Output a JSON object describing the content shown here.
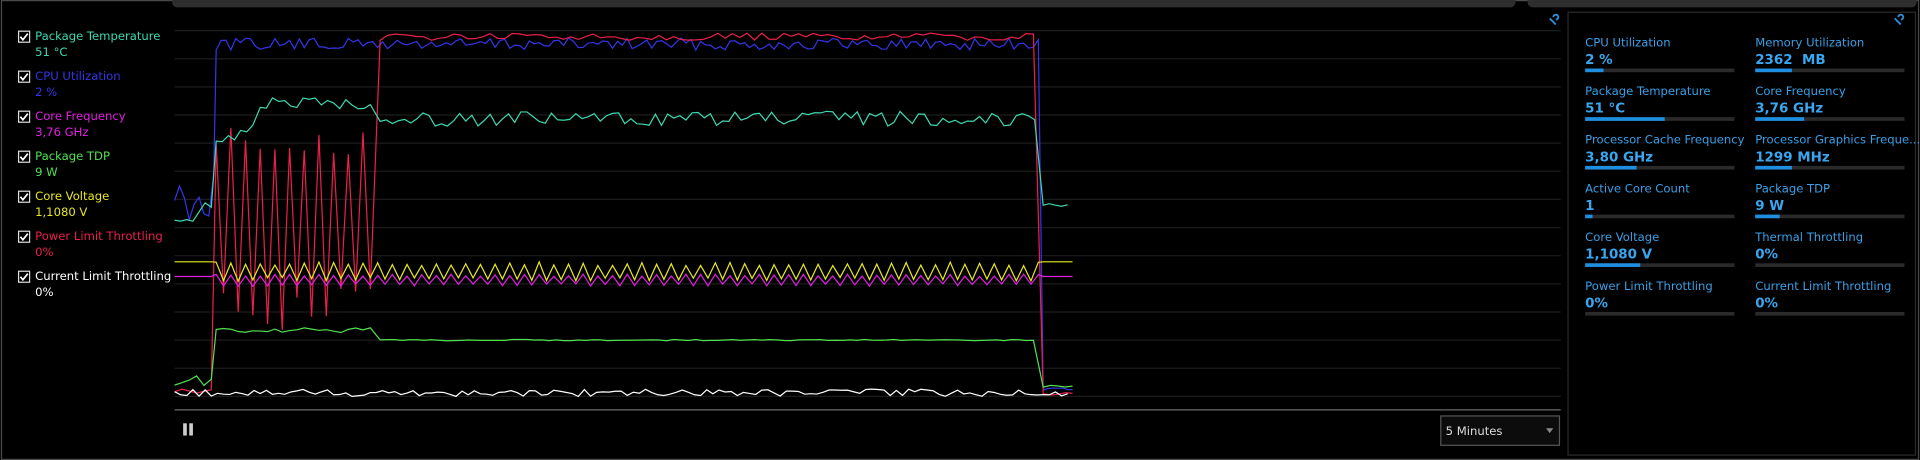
{
  "legend": {
    "items": [
      {
        "label": "Package Temperature",
        "value": "51 °C",
        "color": "#3fd6b0",
        "checked": true
      },
      {
        "label": "CPU Utilization",
        "value": "2 %",
        "color": "#3434e6",
        "checked": true
      },
      {
        "label": "Core Frequency",
        "value": "3,76 GHz",
        "color": "#e020e0",
        "checked": true
      },
      {
        "label": "Package TDP",
        "value": "9 W",
        "color": "#50e050",
        "checked": true
      },
      {
        "label": "Core Voltage",
        "value": "1,1080 V",
        "color": "#e8e820",
        "checked": true
      },
      {
        "label": "Power Limit Throttling",
        "value": "0%",
        "color": "#e8204a",
        "checked": true
      },
      {
        "label": "Current Limit Throttling",
        "value": "0%",
        "color": "#ffffff",
        "checked": true
      }
    ]
  },
  "metrics": [
    {
      "label": "CPU Utilization",
      "value": "2 %"
    },
    {
      "label": "Memory Utilization",
      "value": "2362  MB"
    },
    {
      "label": "Package Temperature",
      "value": "51 °C"
    },
    {
      "label": "Core Frequency",
      "value": "3,76 GHz"
    },
    {
      "label": "Processor Cache Frequency",
      "value": "3,80 GHz"
    },
    {
      "label": "Processor Graphics Freque...",
      "value": "1299 MHz"
    },
    {
      "label": "Active Core Count",
      "value": "1"
    },
    {
      "label": "Package TDP",
      "value": "9 W"
    },
    {
      "label": "Core Voltage",
      "value": "1,1080 V"
    },
    {
      "label": "Thermal Throttling",
      "value": "0%"
    },
    {
      "label": "Power Limit Throttling",
      "value": "0%"
    },
    {
      "label": "Current Limit Throttling",
      "value": "0%"
    }
  ],
  "time_range": "5 Minutes"
}
